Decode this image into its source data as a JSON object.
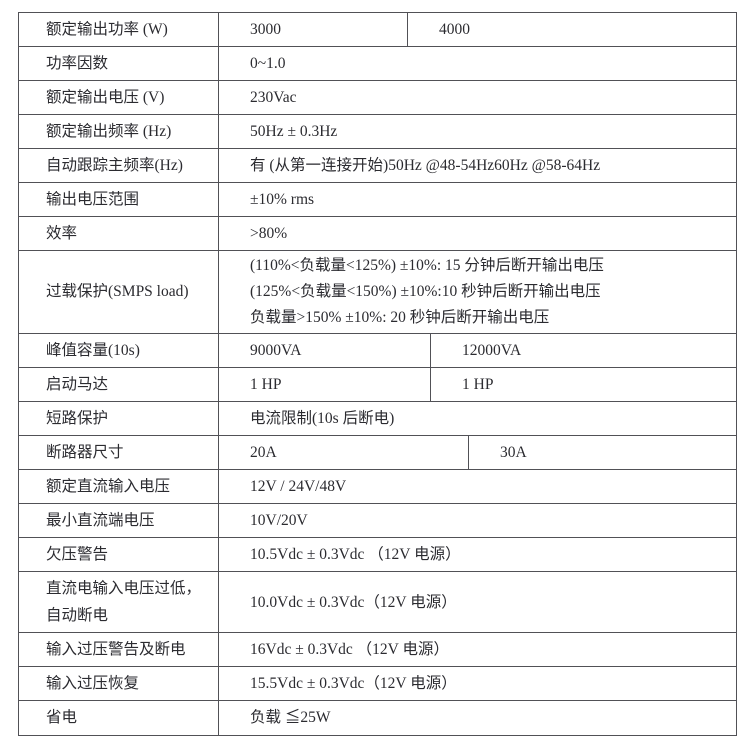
{
  "table": {
    "rows": [
      {
        "label": "额定输出功率 (W)",
        "v1": "3000",
        "v2": "4000"
      },
      {
        "label": "功率因数",
        "v": "0~1.0"
      },
      {
        "label": "额定输出电压 (V)",
        "v": "230Vac"
      },
      {
        "label": "额定输出频率 (Hz)",
        "v": "50Hz ± 0.3Hz"
      },
      {
        "label": "自动跟踪主频率(Hz)",
        "v": "有 (从第一连接开始)50Hz @48-54Hz60Hz @58-64Hz"
      },
      {
        "label": "输出电压范围",
        "v": "±10% rms"
      },
      {
        "label": "效率",
        "v": ">80%"
      },
      {
        "label": "过载保护(SMPS load)",
        "line1": "(110%<负载量<125%) ±10%: 15 分钟后断开输出电压",
        "line2": "(125%<负载量<150%) ±10%:10 秒钟后断开输出电压",
        "line3": "负载量>150% ±10%: 20 秒钟后断开输出电压"
      },
      {
        "label": "峰值容量(10s)",
        "v1": "9000VA",
        "v2": "12000VA"
      },
      {
        "label": "启动马达",
        "v1": "1 HP",
        "v2": "1 HP"
      },
      {
        "label": "短路保护",
        "v": "电流限制(10s 后断电)"
      },
      {
        "label": "断路器尺寸",
        "v1": "20A",
        "v2": "30A"
      },
      {
        "label": "额定直流输入电压",
        "v": "12V / 24V/48V"
      },
      {
        "label": "最小直流端电压",
        "v": "10V/20V"
      },
      {
        "label": "欠压警告",
        "v": "10.5Vdc ± 0.3Vdc （12V 电源）"
      },
      {
        "label1": "直流电输入电压过低，",
        "label2": "自动断电",
        "v": "10.0Vdc ± 0.3Vdc（12V 电源）"
      },
      {
        "label": "输入过压警告及断电",
        "v": "16Vdc ± 0.3Vdc （12V 电源）"
      },
      {
        "label": "输入过压恢复",
        "v": "15.5Vdc ± 0.3Vdc（12V 电源）"
      },
      {
        "label": "省电",
        "v": "负载 ≦25W"
      }
    ],
    "border_color": "#515156",
    "text_color": "#2b2b30"
  }
}
